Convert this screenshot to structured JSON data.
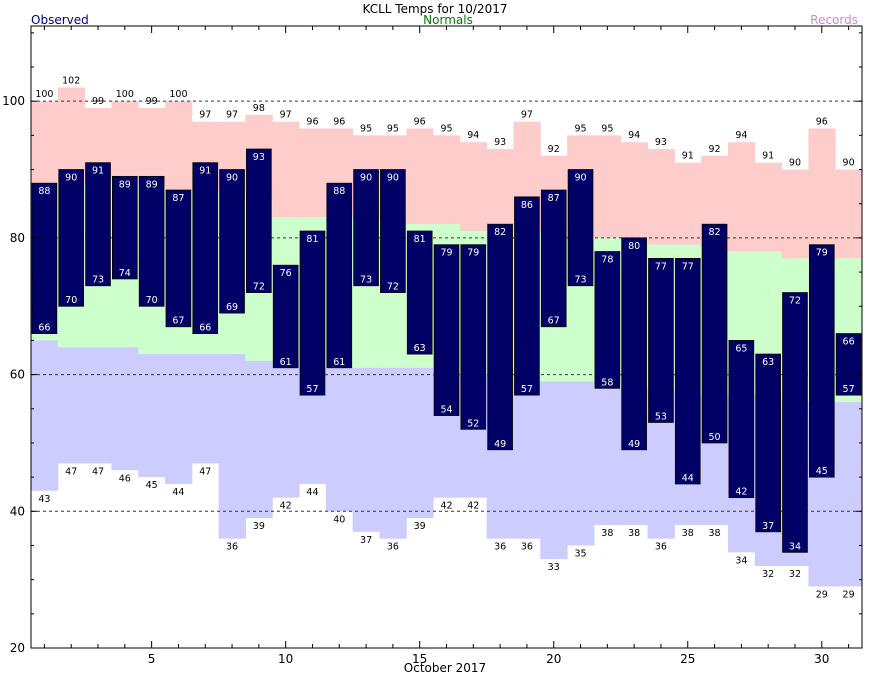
{
  "chart_data": {
    "type": "bar",
    "title": "KCLL Temps for 10/2017",
    "legend": {
      "observed": "Observed",
      "normals": "Normals",
      "records": "Records"
    },
    "xlabel": "October 2017",
    "x_ticks": [
      "5",
      "10",
      "15",
      "20",
      "25",
      "30"
    ],
    "y_ticks": [
      "20",
      "40",
      "60",
      "80",
      "100"
    ],
    "ylim": [
      20,
      111
    ],
    "grid_lines_y": [
      40,
      60,
      80,
      100
    ],
    "days": [
      1,
      2,
      3,
      4,
      5,
      6,
      7,
      8,
      9,
      10,
      11,
      12,
      13,
      14,
      15,
      16,
      17,
      18,
      19,
      20,
      21,
      22,
      23,
      24,
      25,
      26,
      27,
      28,
      29,
      30,
      31
    ],
    "series": [
      {
        "name": "Records",
        "key": "record_high",
        "values": [
          100,
          102,
          99,
          100,
          99,
          100,
          97,
          97,
          98,
          97,
          96,
          96,
          95,
          95,
          96,
          95,
          94,
          93,
          97,
          92,
          95,
          95,
          94,
          93,
          91,
          92,
          94,
          91,
          90,
          96,
          90
        ]
      },
      {
        "name": "Records",
        "key": "record_low",
        "values": [
          43,
          47,
          47,
          46,
          45,
          44,
          47,
          36,
          39,
          42,
          44,
          40,
          37,
          36,
          39,
          42,
          42,
          36,
          36,
          33,
          35,
          38,
          38,
          36,
          38,
          38,
          34,
          32,
          32,
          29,
          29
        ]
      },
      {
        "name": "Normals",
        "key": "normal_high",
        "values": [
          88,
          88,
          88,
          88,
          88,
          87,
          87,
          87,
          86,
          83,
          83,
          83,
          83,
          83,
          82,
          82,
          81,
          81,
          81,
          81,
          80,
          80,
          80,
          79,
          79,
          78,
          78,
          78,
          77,
          77,
          77
        ]
      },
      {
        "name": "Normals",
        "key": "normal_low",
        "values": [
          65,
          64,
          64,
          64,
          63,
          63,
          63,
          63,
          62,
          62,
          61,
          61,
          61,
          61,
          61,
          60,
          60,
          60,
          59,
          59,
          59,
          58,
          58,
          58,
          57,
          57,
          57,
          57,
          56,
          56,
          56
        ]
      },
      {
        "name": "Observed",
        "key": "observed_high",
        "values": [
          88,
          90,
          91,
          89,
          89,
          87,
          91,
          90,
          93,
          76,
          81,
          88,
          90,
          90,
          81,
          79,
          79,
          82,
          86,
          87,
          90,
          78,
          80,
          77,
          77,
          82,
          65,
          63,
          72,
          79,
          66
        ]
      },
      {
        "name": "Observed",
        "key": "observed_low",
        "values": [
          66,
          70,
          73,
          74,
          70,
          67,
          66,
          69,
          72,
          61,
          57,
          61,
          73,
          72,
          63,
          54,
          52,
          49,
          57,
          67,
          73,
          58,
          49,
          53,
          44,
          50,
          42,
          37,
          34,
          45,
          57
        ]
      }
    ],
    "colors": {
      "records": "#ffcccc",
      "normals": "#ccffcc",
      "lows": "#ccccff",
      "observed": "#000066",
      "observed_label": "#000080",
      "normals_label": "#008000",
      "records_label": "#cc88cc"
    }
  }
}
